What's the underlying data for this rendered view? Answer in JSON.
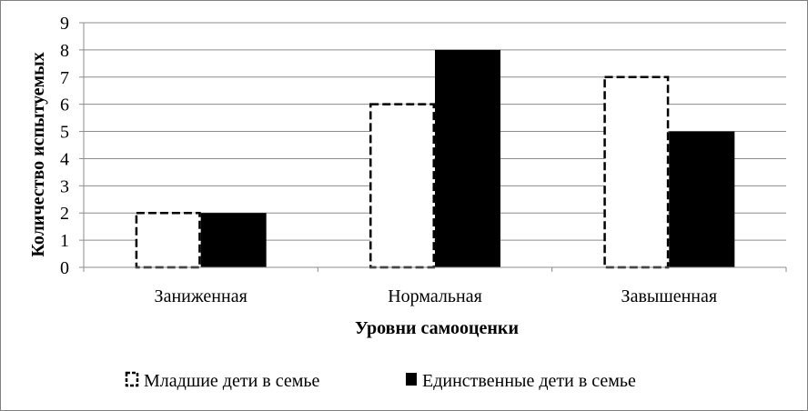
{
  "chart_data": {
    "type": "bar",
    "categories": [
      "Заниженная",
      "Нормальная",
      "Завышенная"
    ],
    "series": [
      {
        "name": "Младшие дети в семье",
        "values": [
          2,
          6,
          7
        ],
        "style": "dashed-outline",
        "color": "#000000",
        "fill": "#ffffff"
      },
      {
        "name": "Единственные дети в семье",
        "values": [
          2,
          8,
          5
        ],
        "style": "solid",
        "color": "#000000",
        "fill": "#000000"
      }
    ],
    "title": "",
    "xlabel": "Уровни самооценки",
    "ylabel": "Количество испытуемых",
    "ylim": [
      0,
      9
    ],
    "yticks": [
      "0",
      "1",
      "2",
      "3",
      "4",
      "5",
      "6",
      "7",
      "8",
      "9"
    ],
    "grid": true,
    "legend_position": "bottom"
  }
}
